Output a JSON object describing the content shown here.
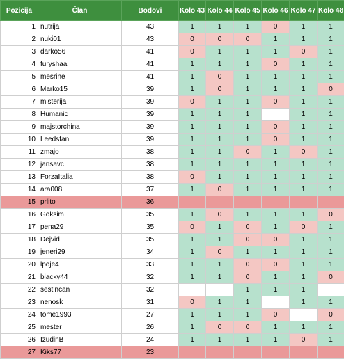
{
  "header": {
    "pozicija": "Pozicija",
    "clan": "Član",
    "bodovi": "Bodovi",
    "kolo": [
      "Kolo 43",
      "Kolo 44",
      "Kolo 45",
      "Kolo 46",
      "Kolo 47",
      "Kolo 48"
    ]
  },
  "colors": {
    "header_bg": "#3e8f3e",
    "win_cell": "#b7e1cd",
    "loss_cell": "#f4c7c3",
    "highlight_row": "#ea9999"
  },
  "rows": [
    {
      "pos": "1",
      "name": "nutrija",
      "pts": "43",
      "k": [
        "1",
        "1",
        "1",
        "0",
        "1",
        "1"
      ],
      "hl": false
    },
    {
      "pos": "2",
      "name": "nuki01",
      "pts": "43",
      "k": [
        "0",
        "0",
        "0",
        "1",
        "1",
        "1"
      ],
      "hl": false
    },
    {
      "pos": "3",
      "name": "darko56",
      "pts": "41",
      "k": [
        "0",
        "1",
        "1",
        "1",
        "0",
        "1"
      ],
      "hl": false
    },
    {
      "pos": "4",
      "name": "furyshaa",
      "pts": "41",
      "k": [
        "1",
        "1",
        "1",
        "0",
        "1",
        "1"
      ],
      "hl": false
    },
    {
      "pos": "5",
      "name": "mesrine",
      "pts": "41",
      "k": [
        "1",
        "0",
        "1",
        "1",
        "1",
        "1"
      ],
      "hl": false
    },
    {
      "pos": "6",
      "name": "Marko15",
      "pts": "39",
      "k": [
        "1",
        "0",
        "1",
        "1",
        "1",
        "0"
      ],
      "hl": false
    },
    {
      "pos": "7",
      "name": "misterija",
      "pts": "39",
      "k": [
        "0",
        "1",
        "1",
        "0",
        "1",
        "1"
      ],
      "hl": false
    },
    {
      "pos": "8",
      "name": "Humanic",
      "pts": "39",
      "k": [
        "1",
        "1",
        "1",
        "",
        "1",
        "1"
      ],
      "hl": false
    },
    {
      "pos": "9",
      "name": "majstorchina",
      "pts": "39",
      "k": [
        "1",
        "1",
        "1",
        "0",
        "1",
        "1"
      ],
      "hl": false
    },
    {
      "pos": "10",
      "name": "Leedsfan",
      "pts": "39",
      "k": [
        "1",
        "1",
        "1",
        "0",
        "1",
        "1"
      ],
      "hl": false
    },
    {
      "pos": "11",
      "name": "zmajo",
      "pts": "38",
      "k": [
        "1",
        "1",
        "0",
        "1",
        "0",
        "1"
      ],
      "hl": false
    },
    {
      "pos": "12",
      "name": "jansavc",
      "pts": "38",
      "k": [
        "1",
        "1",
        "1",
        "1",
        "1",
        "1"
      ],
      "hl": false
    },
    {
      "pos": "13",
      "name": "ForzaItalia",
      "pts": "38",
      "k": [
        "0",
        "1",
        "1",
        "1",
        "1",
        "1"
      ],
      "hl": false
    },
    {
      "pos": "14",
      "name": "ara008",
      "pts": "37",
      "k": [
        "1",
        "0",
        "1",
        "1",
        "1",
        "1"
      ],
      "hl": false
    },
    {
      "pos": "15",
      "name": "prlito",
      "pts": "36",
      "k": [
        "",
        "",
        "",
        "",
        "",
        ""
      ],
      "hl": true
    },
    {
      "pos": "16",
      "name": "Goksim",
      "pts": "35",
      "k": [
        "1",
        "0",
        "1",
        "1",
        "1",
        "0"
      ],
      "hl": false
    },
    {
      "pos": "17",
      "name": "pena29",
      "pts": "35",
      "k": [
        "0",
        "1",
        "0",
        "1",
        "0",
        "1"
      ],
      "hl": false
    },
    {
      "pos": "18",
      "name": "Dejvid",
      "pts": "35",
      "k": [
        "1",
        "1",
        "0",
        "0",
        "1",
        "1"
      ],
      "hl": false
    },
    {
      "pos": "19",
      "name": "jeneri29",
      "pts": "34",
      "k": [
        "1",
        "0",
        "1",
        "1",
        "1",
        "1"
      ],
      "hl": false
    },
    {
      "pos": "20",
      "name": "lpoje4",
      "pts": "33",
      "k": [
        "1",
        "1",
        "0",
        "0",
        "1",
        "1"
      ],
      "hl": false
    },
    {
      "pos": "21",
      "name": "blacky44",
      "pts": "32",
      "k": [
        "1",
        "1",
        "0",
        "1",
        "1",
        "0"
      ],
      "hl": false
    },
    {
      "pos": "22",
      "name": "sestincan",
      "pts": "32",
      "k": [
        "",
        "",
        "1",
        "1",
        "1",
        ""
      ],
      "hl": false
    },
    {
      "pos": "23",
      "name": "nenosk",
      "pts": "31",
      "k": [
        "0",
        "1",
        "1",
        "",
        "1",
        "1"
      ],
      "hl": false
    },
    {
      "pos": "24",
      "name": "tome1993",
      "pts": "27",
      "k": [
        "1",
        "1",
        "1",
        "0",
        "",
        "0"
      ],
      "hl": false
    },
    {
      "pos": "25",
      "name": "mester",
      "pts": "26",
      "k": [
        "1",
        "0",
        "0",
        "1",
        "1",
        "1"
      ],
      "hl": false
    },
    {
      "pos": "26",
      "name": "IzudinB",
      "pts": "24",
      "k": [
        "1",
        "1",
        "1",
        "1",
        "0",
        "1"
      ],
      "hl": false
    },
    {
      "pos": "27",
      "name": "Kiks77",
      "pts": "23",
      "k": [
        "",
        "",
        "",
        "",
        "",
        ""
      ],
      "hl": true
    }
  ]
}
